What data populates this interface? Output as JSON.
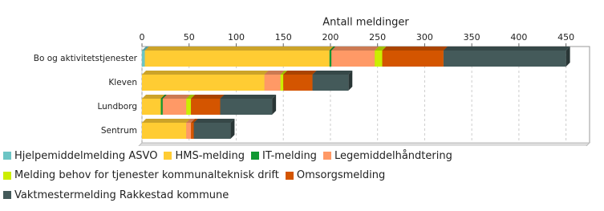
{
  "chart_data": {
    "type": "bar",
    "orientation": "horizontal",
    "stacked": true,
    "x_label": "Antall meldinger",
    "categories": [
      "Bo og aktivitetstjenester",
      "Kleven",
      "Lundborg",
      "Sentrum"
    ],
    "series": [
      {
        "name": "Hjelpemiddelmelding ASVO",
        "color": "#6cc5c5",
        "values": [
          3,
          0,
          0,
          0
        ]
      },
      {
        "name": "HMS-melding",
        "color": "#ffcc33",
        "values": [
          196,
          130,
          20,
          47
        ]
      },
      {
        "name": "IT-melding",
        "color": "#119933",
        "values": [
          2,
          0,
          2,
          0
        ]
      },
      {
        "name": "Legemiddelhåndtering",
        "color": "#ff9966",
        "values": [
          46,
          17,
          25,
          5
        ]
      },
      {
        "name": "Melding behov for tjenester kommunalteknisk drift",
        "color": "#ccee00",
        "values": [
          8,
          3,
          5,
          0
        ]
      },
      {
        "name": "Omsorgsmelding",
        "color": "#d45500",
        "values": [
          65,
          31,
          31,
          3
        ]
      },
      {
        "name": "Vaktmestermelding Rakkestad kommune",
        "color": "#445a5a",
        "values": [
          130,
          38,
          55,
          39
        ]
      }
    ],
    "xlim": [
      0,
      475
    ],
    "xticks": [
      0,
      50,
      100,
      150,
      200,
      250,
      300,
      350,
      400,
      450
    ],
    "grid": true
  }
}
